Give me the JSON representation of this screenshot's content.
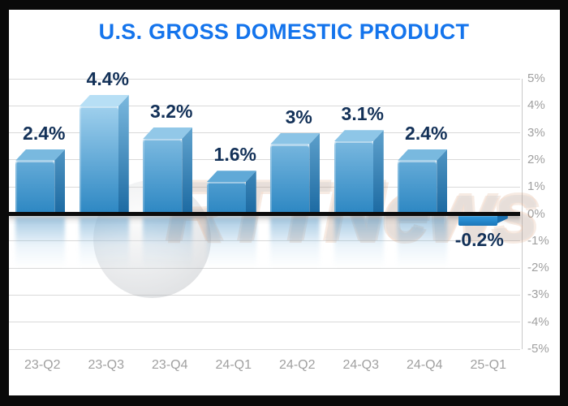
{
  "chart_data": {
    "type": "bar",
    "title": "U.S. GROSS DOMESTIC PRODUCT",
    "subtitle": "",
    "categories": [
      "23-Q2",
      "23-Q3",
      "23-Q4",
      "24-Q1",
      "24-Q2",
      "24-Q3",
      "24-Q4",
      "25-Q1"
    ],
    "values": [
      2.4,
      4.4,
      3.2,
      1.6,
      3.0,
      3.1,
      2.4,
      -0.2
    ],
    "value_labels": [
      "2.4%",
      "4.4%",
      "3.2%",
      "1.6%",
      "3%",
      "3.1%",
      "2.4%",
      "-0.2%"
    ],
    "xlabel": "",
    "ylabel": "",
    "ylim": [
      -5,
      5
    ],
    "y_ticks": [
      "5%",
      "4%",
      "3%",
      "2%",
      "1%",
      "0%",
      "-1%",
      "-2%",
      "-3%",
      "-4%",
      "-5%"
    ],
    "y_tick_values": [
      5,
      4,
      3,
      2,
      1,
      0,
      -1,
      -2,
      -3,
      -4,
      -5
    ],
    "grid": true,
    "axis_side": "right",
    "legend_position": "none",
    "watermark": "RTTNews",
    "colors": {
      "title": "#1474ec",
      "value_label": "#133158",
      "tick_label": "#a0a0a0",
      "gridline": "#d9d9d9",
      "axis_line": "#c9c9c9",
      "zero_line": "#0c0c0c",
      "bar_front_dark": "#2b86c2",
      "bar_front_light": "#c2e6fa",
      "bar_side_dark": "#1c6aa2",
      "bar_side_light": "#8ec8ea",
      "bar_top_dark": "#2f8bc5",
      "bar_top_light": "#c9eafc",
      "negative_bar": "#2f97dc"
    }
  }
}
